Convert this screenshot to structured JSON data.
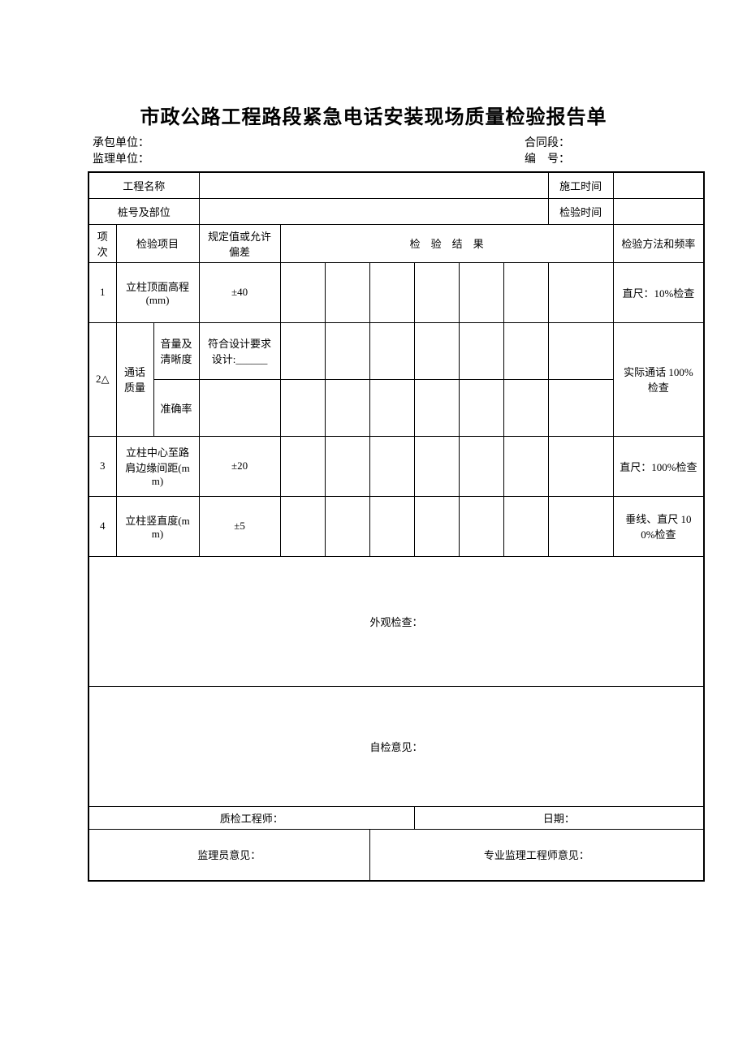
{
  "title": "市政公路工程路段紧急电话安装现场质量检验报告单",
  "meta": {
    "contractor_label": "承包单位：",
    "contract_label": "合同段：",
    "supervisor_label": "监理单位：",
    "serial_label": "编　号："
  },
  "info": {
    "project_name_label": "工程名称",
    "construction_time_label": "施工时间",
    "pile_label": "桩号及部位",
    "inspect_time_label": "检验时间"
  },
  "header": {
    "num": "项次",
    "item": "检验项目",
    "spec": "规定值或允许偏差",
    "result": "检　验　结　果",
    "method": "检验方法和频率"
  },
  "rows": {
    "r1": {
      "num": "1",
      "item": "立柱顶面高程(mm)",
      "spec": "±40",
      "method": "直尺：10%检查"
    },
    "r2": {
      "num": "2△",
      "group": "通话质量",
      "sub1_label": "音量及清晰度",
      "sub1_spec": "符合设计要求设计:______",
      "sub2_label": "准确率",
      "sub2_spec": "",
      "method": "实际通话 100%检查"
    },
    "r3": {
      "num": "3",
      "item": "立柱中心至路肩边缘间距(mm)",
      "spec": "±20",
      "method": "直尺：100%检查"
    },
    "r4": {
      "num": "4",
      "item": "立柱竖直度(mm)",
      "spec": "±5",
      "method": "垂线、直尺 100%检查"
    }
  },
  "blocks": {
    "appearance": "外观检查：",
    "self_opinion": "自检意见：",
    "qc_engineer": "质检工程师：",
    "date_label": "日期：",
    "supervisor_opinion": "监理员意见：",
    "pro_supervisor_opinion": "专业监理工程师意见："
  },
  "style": {
    "text_color": "#000000",
    "bg_color": "#ffffff",
    "border_color": "#000000",
    "title_fontsize": 24,
    "body_fontsize": 13,
    "meta_fontsize": 14
  }
}
